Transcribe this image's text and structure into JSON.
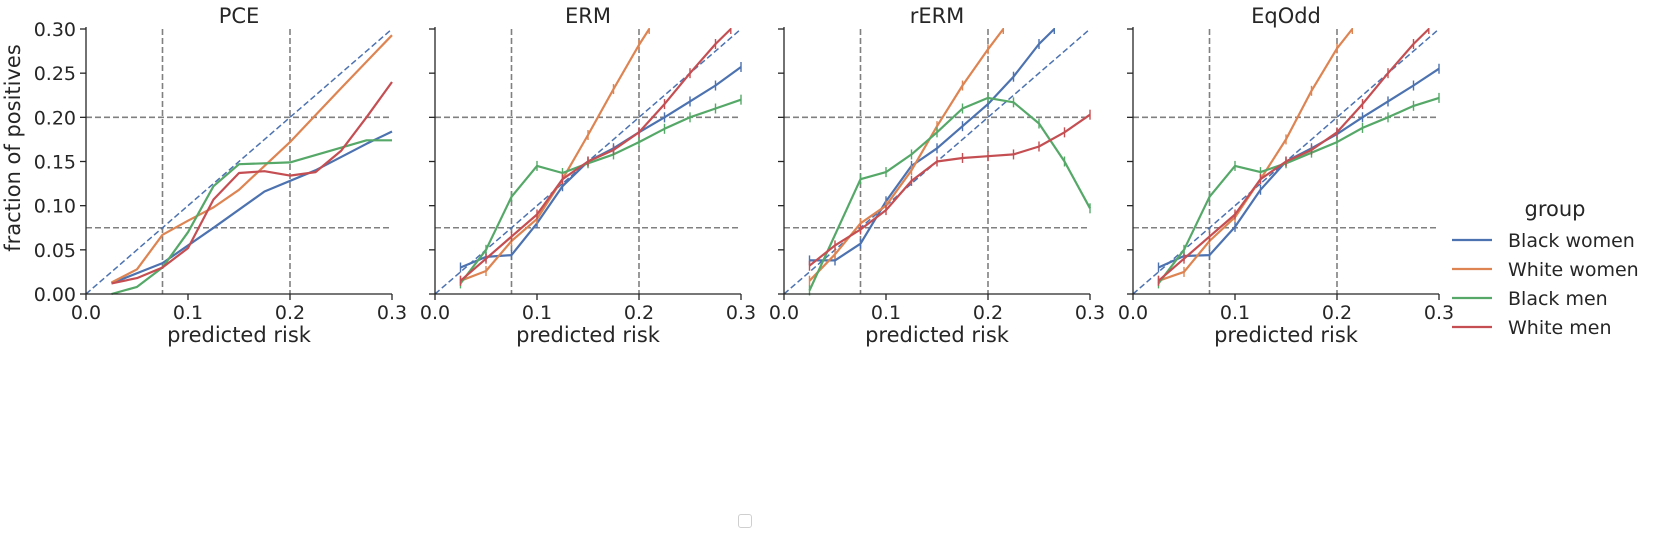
{
  "y_axis_label": "fraction of positives",
  "legend": {
    "title": "group"
  },
  "colors": {
    "Black women": "#4c72b0",
    "White women": "#dd8452",
    "Black men": "#55a868",
    "White men": "#c44e52"
  },
  "chart_data": [
    {
      "type": "line",
      "title": "PCE",
      "xlabel": "predicted risk",
      "ylabel": "fraction of positives",
      "xlim": [
        0,
        0.3
      ],
      "ylim": [
        0,
        0.3
      ],
      "xticks": [
        "0.0",
        "0.1",
        "0.2",
        "0.3"
      ],
      "yticks": [
        "0.00",
        "0.05",
        "0.10",
        "0.15",
        "0.20",
        "0.25",
        "0.30"
      ],
      "reference_lines": {
        "vertical": [
          0.075,
          0.2
        ],
        "horizontal": [
          0.075,
          0.2
        ],
        "diagonal": true
      },
      "series": [
        {
          "name": "Black women",
          "x": [
            0.025,
            0.075,
            0.125,
            0.175,
            0.225,
            0.275,
            0.3
          ],
          "y": [
            0.012,
            0.035,
            0.075,
            0.116,
            0.14,
            0.17,
            0.184
          ]
        },
        {
          "name": "White women",
          "x": [
            0.025,
            0.05,
            0.075,
            0.1,
            0.125,
            0.15,
            0.175,
            0.2,
            0.25,
            0.3
          ],
          "y": [
            0.013,
            0.028,
            0.067,
            0.083,
            0.098,
            0.118,
            0.145,
            0.172,
            0.233,
            0.293
          ]
        },
        {
          "name": "Black men",
          "x": [
            0.025,
            0.05,
            0.075,
            0.1,
            0.125,
            0.15,
            0.2,
            0.275,
            0.3
          ],
          "y": [
            0.0,
            0.008,
            0.03,
            0.07,
            0.122,
            0.147,
            0.149,
            0.174,
            0.174
          ]
        },
        {
          "name": "White men",
          "x": [
            0.025,
            0.05,
            0.075,
            0.1,
            0.125,
            0.15,
            0.175,
            0.2,
            0.225,
            0.25,
            0.275,
            0.3
          ],
          "y": [
            0.012,
            0.018,
            0.03,
            0.052,
            0.107,
            0.137,
            0.139,
            0.134,
            0.138,
            0.162,
            0.2,
            0.24
          ]
        }
      ]
    },
    {
      "type": "line",
      "title": "ERM",
      "xlabel": "predicted risk",
      "xlim": [
        0,
        0.3
      ],
      "ylim": [
        0,
        0.3
      ],
      "xticks": [
        "0.0",
        "0.1",
        "0.2",
        "0.3"
      ],
      "reference_lines": {
        "vertical": [
          0.075,
          0.2
        ],
        "horizontal": [
          0.075,
          0.2
        ],
        "diagonal": true
      },
      "series": [
        {
          "name": "Black women",
          "x": [
            0.025,
            0.05,
            0.075,
            0.1,
            0.125,
            0.15,
            0.175,
            0.2,
            0.225,
            0.25,
            0.275,
            0.3
          ],
          "y": [
            0.03,
            0.042,
            0.044,
            0.08,
            0.122,
            0.15,
            0.165,
            0.183,
            0.2,
            0.218,
            0.236,
            0.257
          ]
        },
        {
          "name": "White women",
          "x": [
            0.025,
            0.05,
            0.075,
            0.1,
            0.125,
            0.15,
            0.175,
            0.2,
            0.21
          ],
          "y": [
            0.015,
            0.026,
            0.06,
            0.085,
            0.13,
            0.18,
            0.232,
            0.282,
            0.3
          ]
        },
        {
          "name": "Black men",
          "x": [
            0.025,
            0.05,
            0.075,
            0.1,
            0.125,
            0.15,
            0.175,
            0.2,
            0.225,
            0.25,
            0.275,
            0.3
          ],
          "y": [
            0.012,
            0.05,
            0.11,
            0.145,
            0.137,
            0.148,
            0.158,
            0.172,
            0.187,
            0.2,
            0.21,
            0.22
          ]
        },
        {
          "name": "White men",
          "x": [
            0.025,
            0.05,
            0.075,
            0.1,
            0.125,
            0.15,
            0.175,
            0.2,
            0.225,
            0.25,
            0.275,
            0.29
          ],
          "y": [
            0.015,
            0.04,
            0.065,
            0.09,
            0.13,
            0.15,
            0.163,
            0.183,
            0.215,
            0.25,
            0.283,
            0.3
          ]
        }
      ]
    },
    {
      "type": "line",
      "title": "rERM",
      "xlabel": "predicted risk",
      "xlim": [
        0,
        0.3
      ],
      "ylim": [
        0,
        0.3
      ],
      "xticks": [
        "0.0",
        "0.1",
        "0.2",
        "0.3"
      ],
      "reference_lines": {
        "vertical": [
          0.075,
          0.2
        ],
        "horizontal": [
          0.075,
          0.2
        ],
        "diagonal": true
      },
      "series": [
        {
          "name": "Black women",
          "x": [
            0.025,
            0.05,
            0.075,
            0.1,
            0.125,
            0.15,
            0.175,
            0.2,
            0.225,
            0.25,
            0.265
          ],
          "y": [
            0.038,
            0.038,
            0.057,
            0.105,
            0.145,
            0.165,
            0.19,
            0.215,
            0.246,
            0.283,
            0.3
          ]
        },
        {
          "name": "White women",
          "x": [
            0.025,
            0.05,
            0.075,
            0.1,
            0.125,
            0.15,
            0.175,
            0.2,
            0.215
          ],
          "y": [
            0.015,
            0.045,
            0.08,
            0.1,
            0.14,
            0.19,
            0.236,
            0.277,
            0.3
          ]
        },
        {
          "name": "Black men",
          "x": [
            0.025,
            0.075,
            0.1,
            0.125,
            0.15,
            0.175,
            0.2,
            0.225,
            0.25,
            0.275,
            0.3
          ],
          "y": [
            0.004,
            0.13,
            0.138,
            0.158,
            0.183,
            0.21,
            0.222,
            0.217,
            0.193,
            0.15,
            0.097
          ]
        },
        {
          "name": "White men",
          "x": [
            0.025,
            0.05,
            0.075,
            0.1,
            0.125,
            0.15,
            0.175,
            0.2,
            0.225,
            0.25,
            0.275,
            0.3
          ],
          "y": [
            0.032,
            0.055,
            0.073,
            0.095,
            0.128,
            0.15,
            0.154,
            0.156,
            0.158,
            0.167,
            0.183,
            0.203
          ]
        }
      ]
    },
    {
      "type": "line",
      "title": "EqOdd",
      "xlabel": "predicted risk",
      "xlim": [
        0,
        0.3
      ],
      "ylim": [
        0,
        0.3
      ],
      "xticks": [
        "0.0",
        "0.1",
        "0.2",
        "0.3"
      ],
      "reference_lines": {
        "vertical": [
          0.075,
          0.2
        ],
        "horizontal": [
          0.075,
          0.2
        ],
        "diagonal": true
      },
      "series": [
        {
          "name": "Black women",
          "x": [
            0.025,
            0.05,
            0.075,
            0.1,
            0.125,
            0.15,
            0.175,
            0.2,
            0.225,
            0.25,
            0.275,
            0.3
          ],
          "y": [
            0.03,
            0.043,
            0.044,
            0.076,
            0.118,
            0.15,
            0.165,
            0.181,
            0.2,
            0.218,
            0.236,
            0.255
          ]
        },
        {
          "name": "White women",
          "x": [
            0.025,
            0.05,
            0.075,
            0.1,
            0.125,
            0.15,
            0.175,
            0.2,
            0.215
          ],
          "y": [
            0.015,
            0.025,
            0.06,
            0.087,
            0.13,
            0.175,
            0.23,
            0.278,
            0.3
          ]
        },
        {
          "name": "Black men",
          "x": [
            0.025,
            0.05,
            0.075,
            0.1,
            0.125,
            0.15,
            0.175,
            0.2,
            0.225,
            0.25,
            0.275,
            0.3
          ],
          "y": [
            0.012,
            0.05,
            0.11,
            0.145,
            0.138,
            0.148,
            0.16,
            0.172,
            0.188,
            0.2,
            0.213,
            0.222
          ]
        },
        {
          "name": "White men",
          "x": [
            0.025,
            0.05,
            0.075,
            0.1,
            0.125,
            0.15,
            0.175,
            0.2,
            0.225,
            0.25,
            0.275,
            0.29
          ],
          "y": [
            0.015,
            0.04,
            0.065,
            0.09,
            0.13,
            0.15,
            0.163,
            0.183,
            0.215,
            0.25,
            0.283,
            0.3
          ]
        }
      ]
    }
  ]
}
